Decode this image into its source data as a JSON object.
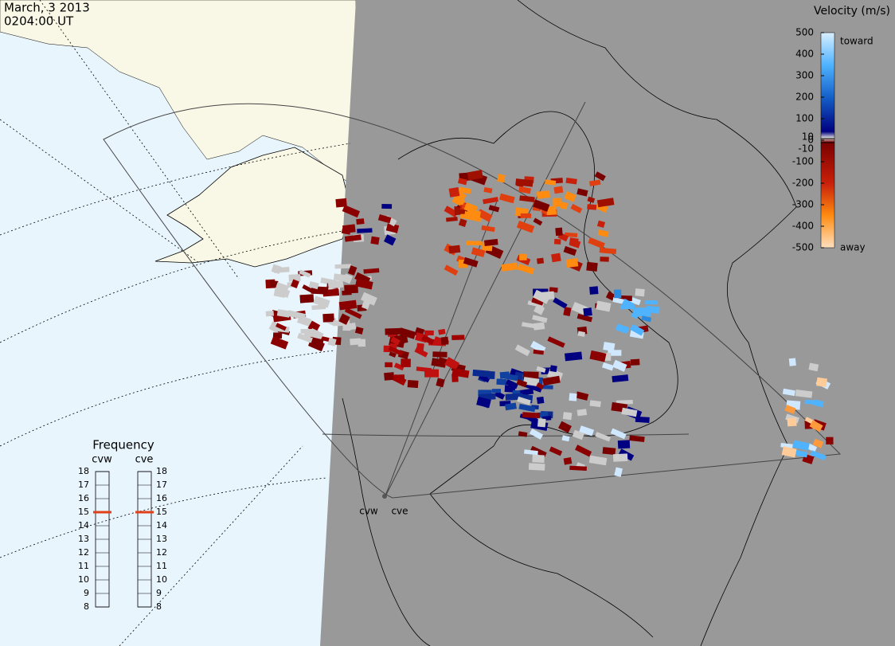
{
  "header": {
    "date": "March, 3 2013",
    "time": "0204:00 UT"
  },
  "colorbar": {
    "title": "Velocity (m/s)",
    "ticks": [
      500,
      400,
      300,
      200,
      100,
      10,
      0,
      -10,
      -100,
      -200,
      -300,
      -400,
      -500
    ],
    "toward": "toward",
    "away": "away"
  },
  "frequency": {
    "title": "Frequency",
    "radars": [
      {
        "name": "cvw",
        "ticks": [
          18,
          17,
          16,
          15,
          14,
          13,
          12,
          11,
          10,
          9,
          8
        ],
        "value": 15
      },
      {
        "name": "cve",
        "ticks": [
          18,
          17,
          16,
          15,
          14,
          13,
          12,
          11,
          10,
          9,
          8
        ],
        "value": 15
      }
    ]
  },
  "stations": [
    "cvw",
    "cve"
  ]
}
